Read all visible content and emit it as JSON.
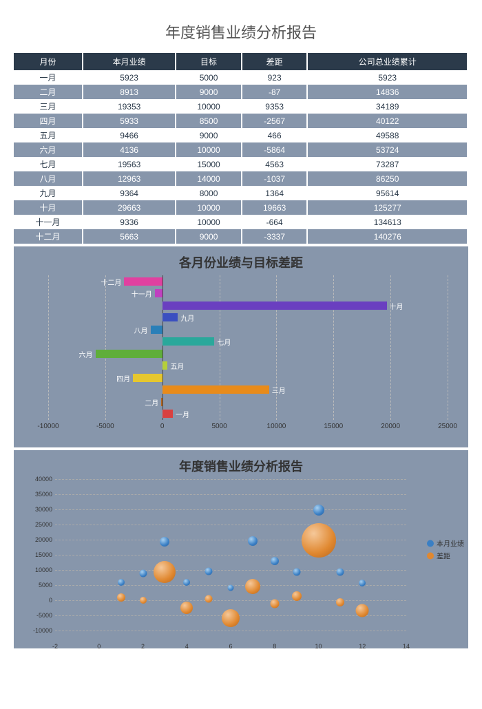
{
  "title": "年度销售业绩分析报告",
  "table": {
    "columns": [
      "月份",
      "本月业绩",
      "目标",
      "差距",
      "公司总业绩累计"
    ],
    "rows": [
      [
        "一月",
        5923,
        5000,
        923,
        5923
      ],
      [
        "二月",
        8913,
        9000,
        -87,
        14836
      ],
      [
        "三月",
        19353,
        10000,
        9353,
        34189
      ],
      [
        "四月",
        5933,
        8500,
        -2567,
        40122
      ],
      [
        "五月",
        9466,
        9000,
        466,
        49588
      ],
      [
        "六月",
        4136,
        10000,
        -5864,
        53724
      ],
      [
        "七月",
        19563,
        15000,
        4563,
        73287
      ],
      [
        "八月",
        12963,
        14000,
        -1037,
        86250
      ],
      [
        "九月",
        9364,
        8000,
        1364,
        95614
      ],
      [
        "十月",
        29663,
        10000,
        19663,
        125277
      ],
      [
        "十一月",
        9336,
        10000,
        -664,
        134613
      ],
      [
        "十二月",
        5663,
        9000,
        -3337,
        140276
      ]
    ],
    "header_bg": "#2b3a4a",
    "header_color": "#ffffff",
    "row_odd_bg": "#ffffff",
    "row_even_bg": "#8796ab"
  },
  "bar_chart": {
    "title": "各月份业绩与目标差距",
    "categories": [
      "一月",
      "二月",
      "三月",
      "四月",
      "五月",
      "六月",
      "七月",
      "八月",
      "九月",
      "十月",
      "十一月",
      "十二月"
    ],
    "values": [
      923,
      -87,
      9353,
      -2567,
      466,
      -5864,
      4563,
      -1037,
      1364,
      19663,
      -664,
      -3337
    ],
    "colors": [
      "#d94040",
      "#b5651d",
      "#e88b1a",
      "#e6c72e",
      "#b5cf3a",
      "#5fae3a",
      "#2aa89b",
      "#2a7fb8",
      "#3a4fc0",
      "#6a3fc0",
      "#c040c0",
      "#e040a0"
    ],
    "xmin": -10000,
    "xmax": 25000,
    "xtick_step": 5000,
    "background": "#8796ab",
    "grid_color": "#bbbbbb",
    "label_fontsize": 10
  },
  "bubble_chart": {
    "title": "年度销售业绩分析报告",
    "x_values": [
      1,
      2,
      3,
      4,
      5,
      6,
      7,
      8,
      9,
      10,
      11,
      12
    ],
    "series": [
      {
        "name": "本月业绩",
        "color": "#3a7fc4",
        "class": "blue",
        "y": [
          5923,
          8913,
          19353,
          5933,
          9466,
          4136,
          19563,
          12963,
          9364,
          29663,
          9336,
          5663
        ],
        "size": [
          10,
          11,
          14,
          10,
          11,
          9,
          14,
          12,
          11,
          16,
          11,
          10
        ]
      },
      {
        "name": "差距",
        "color": "#e08830",
        "class": "orange",
        "y": [
          923,
          -87,
          9353,
          -2567,
          466,
          -5864,
          4563,
          -1037,
          1364,
          19663,
          -664,
          -3337
        ],
        "size": [
          12,
          10,
          32,
          18,
          11,
          26,
          22,
          13,
          14,
          50,
          12,
          19
        ]
      }
    ],
    "xmin": -2,
    "xmax": 14,
    "xtick_step": 2,
    "ymin": -10000,
    "ymax": 40000,
    "ytick_step": 5000,
    "background": "#8796ab",
    "legend_labels": [
      "本月业绩",
      "差距"
    ]
  }
}
